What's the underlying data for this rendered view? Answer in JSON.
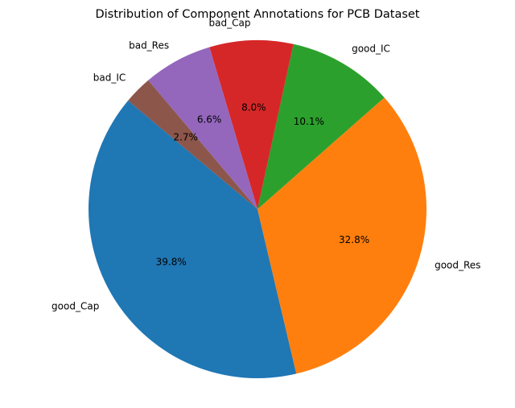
{
  "chart_data": {
    "type": "pie",
    "title": "Distribution of Component Annotations for PCB Dataset",
    "slices": [
      {
        "label": "good_Cap",
        "value": 39.8,
        "pct_label": "39.8%",
        "color": "#1f77b4"
      },
      {
        "label": "good_Res",
        "value": 32.8,
        "pct_label": "32.8%",
        "color": "#ff7f0e"
      },
      {
        "label": "good_IC",
        "value": 10.1,
        "pct_label": "10.1%",
        "color": "#2ca02c"
      },
      {
        "label": "bad_Cap",
        "value": 8.0,
        "pct_label": "8.0%",
        "color": "#d62728"
      },
      {
        "label": "bad_Res",
        "value": 6.6,
        "pct_label": "6.6%",
        "color": "#9467bd"
      },
      {
        "label": "bad_IC",
        "value": 2.7,
        "pct_label": "2.7%",
        "color": "#8c564b"
      }
    ],
    "start_angle_deg": 140,
    "direction": "counterclockwise",
    "legend": "none"
  }
}
